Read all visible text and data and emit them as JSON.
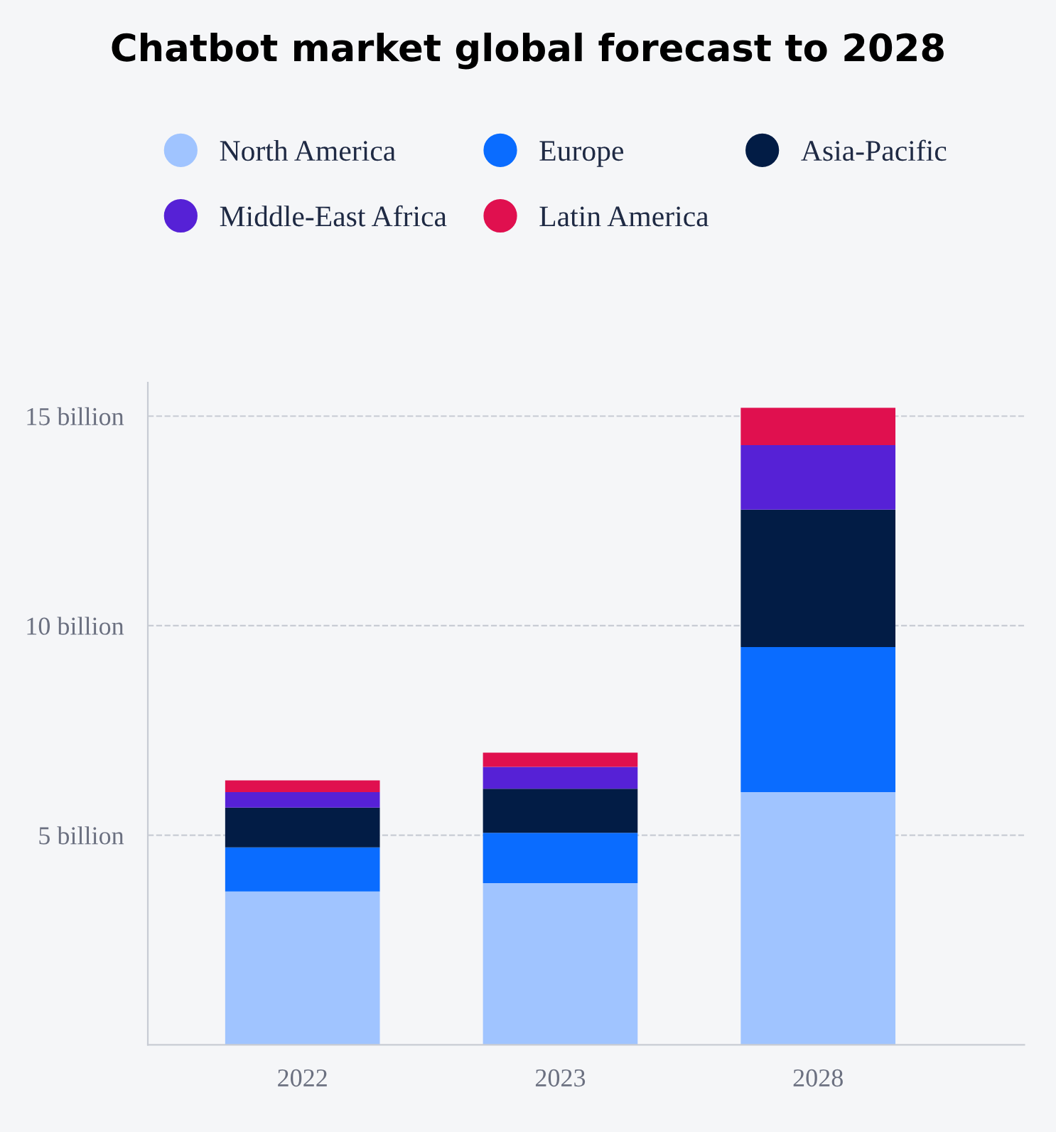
{
  "chart_data": {
    "type": "bar",
    "title": "Chatbot market global forecast to 2028",
    "categories": [
      "2022",
      "2023",
      "2028"
    ],
    "stacked": true,
    "series": [
      {
        "name": "North America",
        "color": "#a0c4ff",
        "values": [
          3.66,
          3.86,
          6.03
        ]
      },
      {
        "name": "Europe",
        "color": "#0a6cff",
        "values": [
          1.05,
          1.2,
          3.46
        ]
      },
      {
        "name": "Asia-Pacific",
        "color": "#021c45",
        "values": [
          0.95,
          1.05,
          3.28
        ]
      },
      {
        "name": "Middle-East Africa",
        "color": "#5621d6",
        "values": [
          0.37,
          0.52,
          1.54
        ]
      },
      {
        "name": "Latin America",
        "color": "#e0104f",
        "values": [
          0.28,
          0.34,
          0.89
        ]
      }
    ],
    "ylim": [
      0,
      15.8
    ],
    "yticks": [
      {
        "value": 5,
        "label": "5 billion"
      },
      {
        "value": 10,
        "label": "10 billion"
      },
      {
        "value": 15,
        "label": "15 billion"
      }
    ],
    "grid": "y",
    "legend": "top",
    "marker": "circle"
  }
}
